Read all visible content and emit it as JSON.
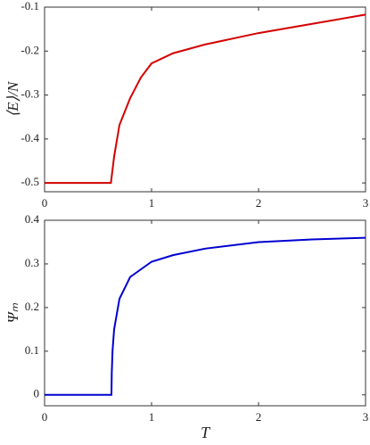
{
  "chart_data": [
    {
      "type": "line",
      "y_label": "⟨E⟩/N",
      "color": "#d40000",
      "x": [
        0,
        0.62,
        0.65,
        0.7,
        0.8,
        0.9,
        1.0,
        1.2,
        1.5,
        2.0,
        2.5,
        3.0
      ],
      "values": [
        -0.5,
        -0.5,
        -0.44,
        -0.368,
        -0.307,
        -0.26,
        -0.228,
        -0.205,
        -0.185,
        -0.159,
        -0.138,
        -0.117
      ],
      "xlim": [
        0,
        3
      ],
      "xticks": [
        0,
        1,
        2,
        3
      ],
      "ylim": [
        -0.52,
        -0.1
      ],
      "yticks": [
        -0.5,
        -0.4,
        -0.3,
        -0.2,
        -0.1
      ]
    },
    {
      "type": "line",
      "y_label": "Ψₘ",
      "x_label": "T",
      "color": "#0000d0",
      "x": [
        0,
        0.625,
        0.628,
        0.635,
        0.65,
        0.7,
        0.8,
        1.0,
        1.2,
        1.5,
        2.0,
        2.5,
        3.0
      ],
      "values": [
        0,
        0,
        0.05,
        0.1,
        0.15,
        0.22,
        0.27,
        0.305,
        0.32,
        0.335,
        0.35,
        0.356,
        0.36
      ],
      "xlim": [
        0,
        3
      ],
      "xticks": [
        0,
        1,
        2,
        3
      ],
      "ylim": [
        -0.025,
        0.4
      ],
      "yticks": [
        0,
        0.1,
        0.2,
        0.3,
        0.4
      ]
    }
  ]
}
